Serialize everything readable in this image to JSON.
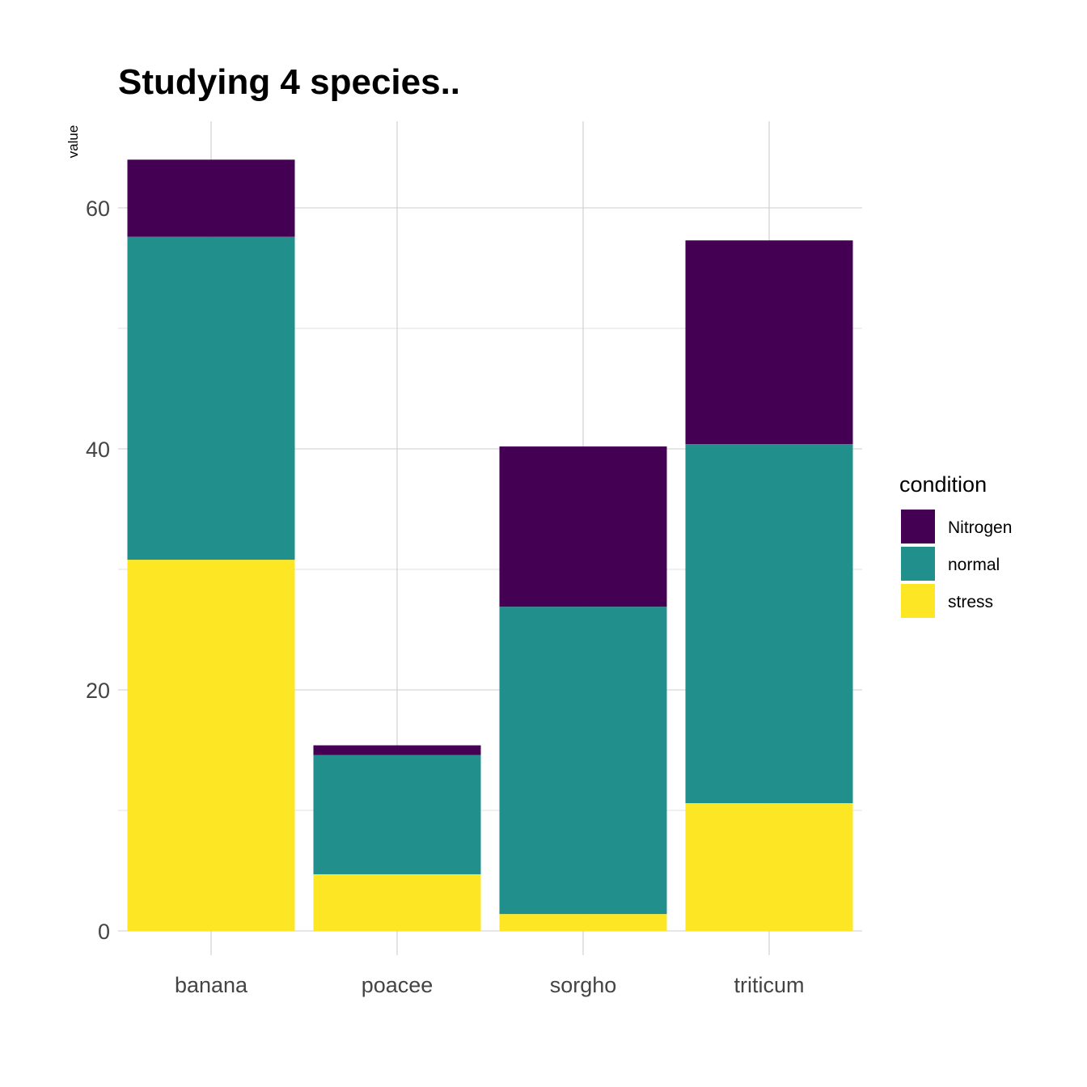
{
  "chart_data": {
    "type": "bar",
    "stacked": true,
    "title": "Studying 4 species..",
    "xlabel": "",
    "ylabel": "value",
    "categories": [
      "banana",
      "poacee",
      "sorgho",
      "triticum"
    ],
    "stack_order_bottom_to_top": [
      "stress",
      "normal",
      "Nitrogen"
    ],
    "series": [
      {
        "name": "Nitrogen",
        "color": "#440154",
        "values": [
          6.4,
          0.8,
          13.3,
          16.9
        ]
      },
      {
        "name": "normal",
        "color": "#21908C",
        "values": [
          26.8,
          9.9,
          25.5,
          29.8
        ]
      },
      {
        "name": "stress",
        "color": "#FDE725",
        "values": [
          30.8,
          4.7,
          1.4,
          10.6
        ]
      }
    ],
    "ylim": [
      0,
      67
    ],
    "yticks": [
      0,
      20,
      40,
      60
    ],
    "grid": true,
    "legend": {
      "title": "condition",
      "position": "right"
    }
  }
}
